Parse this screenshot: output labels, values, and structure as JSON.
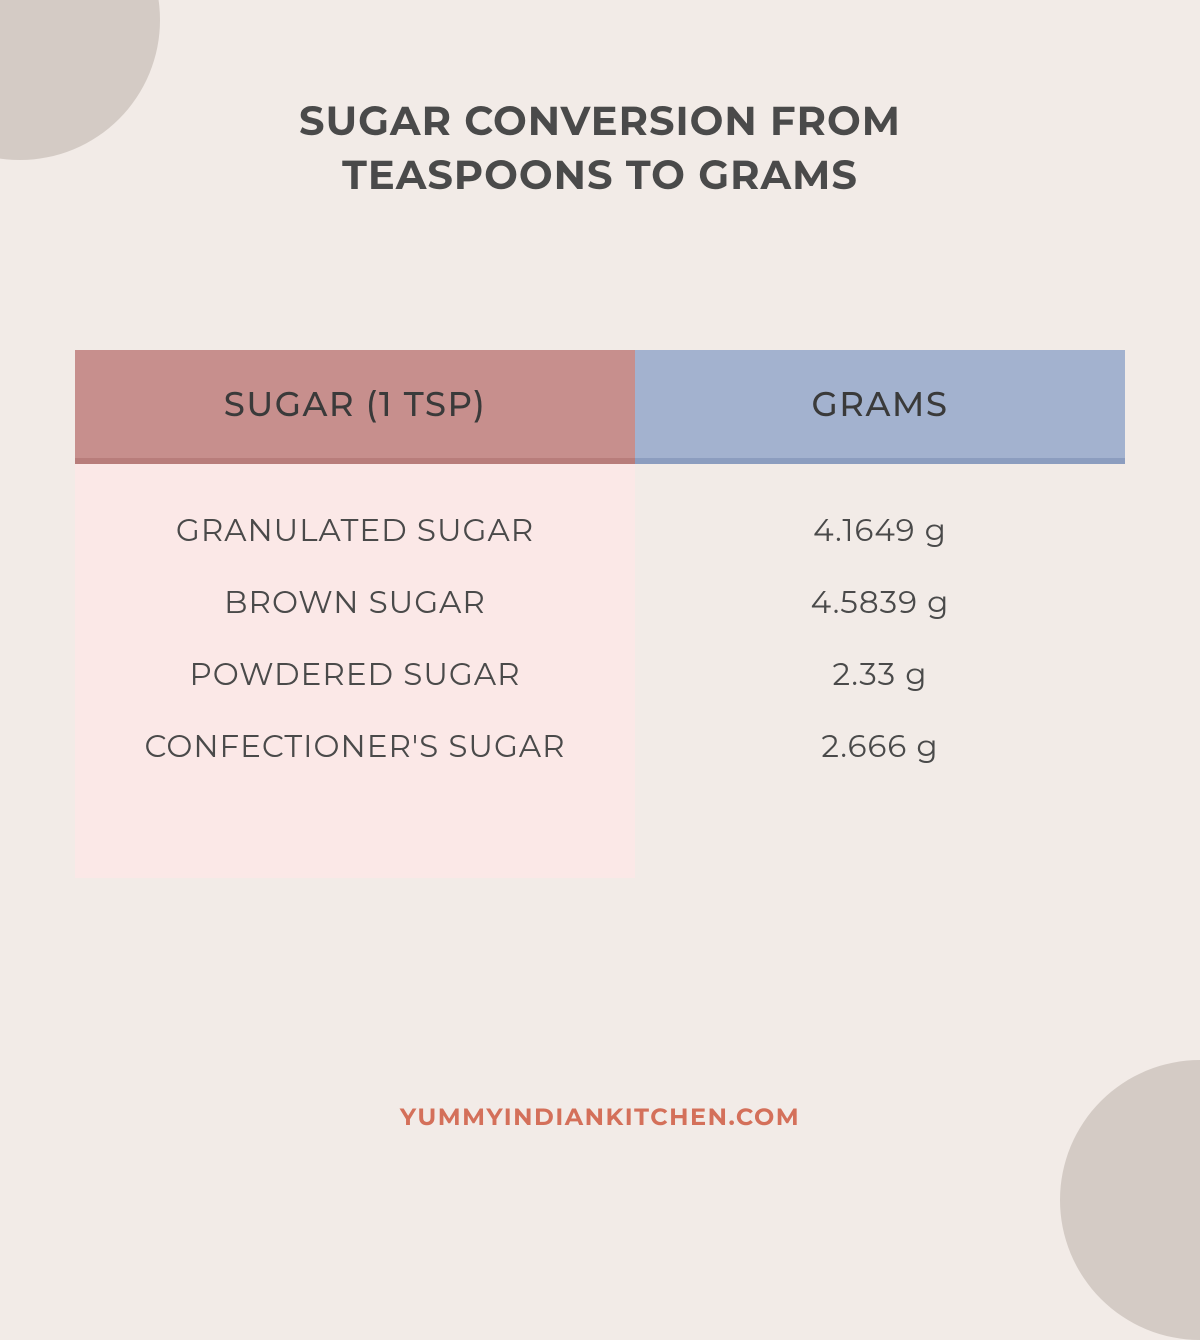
{
  "title_line1": "SUGAR CONVERSION FROM",
  "title_line2": "TEASPOONS TO GRAMS",
  "table": {
    "header_left": "SUGAR (1 TSP)",
    "header_right": "GRAMS",
    "rows": [
      {
        "name": "GRANULATED SUGAR",
        "value": "4.1649 g"
      },
      {
        "name": "BROWN SUGAR",
        "value": "4.5839 g"
      },
      {
        "name": "POWDERED SUGAR",
        "value": "2.33 g"
      },
      {
        "name": "CONFECTIONER'S SUGAR",
        "value": "2.666 g"
      }
    ],
    "colors": {
      "header_left_bg": "#c78f8d",
      "header_left_shadow": "#b87d7b",
      "header_right_bg": "#a3b2cf",
      "header_right_shadow": "#8c9dbf",
      "body_left_bg": "#fbe8e7",
      "page_bg": "#f2ebe7",
      "corner_bg": "#d4cbc5",
      "text": "#4a4a4a",
      "footer": "#d4705a"
    },
    "header_fontsize": 34,
    "row_fontsize": 31,
    "title_fontsize": 40
  },
  "footer": "YUMMYINDIANKITCHEN.COM"
}
